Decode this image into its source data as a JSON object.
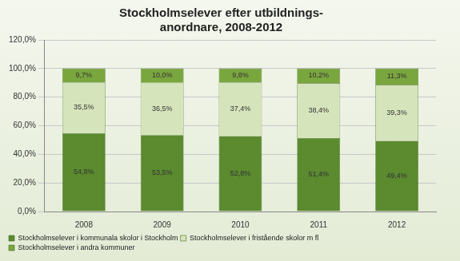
{
  "chart_data": {
    "type": "bar",
    "title": [
      "Stockholmselever efter utbildnings-",
      "anordnare, 2008-2012"
    ],
    "categories": [
      "2008",
      "2009",
      "2010",
      "2011",
      "2012"
    ],
    "stacked": true,
    "grid": true,
    "legend": "bottom",
    "data_labels": true,
    "ylim": [
      0,
      120
    ],
    "yticks": [
      {
        "value": 0,
        "label": "0,0%"
      },
      {
        "value": 20,
        "label": "20,0%"
      },
      {
        "value": 40,
        "label": "40,0%"
      },
      {
        "value": 60,
        "label": "60,0%"
      },
      {
        "value": 80,
        "label": "80,0%"
      },
      {
        "value": 100,
        "label": "100,0%"
      },
      {
        "value": 120,
        "label": "120,0%"
      }
    ],
    "series": [
      {
        "name": "Stockholmselever i kommunala skolor i Stockholm",
        "color": "#5b8a2f",
        "values": [
          54.8,
          53.5,
          52.8,
          51.4,
          49.4
        ],
        "value_labels": [
          "54,8%",
          "53,5%",
          "52,8%",
          "51,4%",
          "49,4%"
        ]
      },
      {
        "name": "Stockholmselever i fristående skolor m fl",
        "color": "#d6e4bc",
        "values": [
          35.5,
          36.5,
          37.4,
          38.4,
          39.3
        ],
        "value_labels": [
          "35,5%",
          "36,5%",
          "37,4%",
          "38,4%",
          "39,3%"
        ]
      },
      {
        "name": "Stockholmselever i andra kommuner",
        "color": "#7aa63e",
        "values": [
          9.7,
          10.0,
          9.8,
          10.2,
          11.3
        ],
        "value_labels": [
          "9,7%",
          "10,0%",
          "9,8%",
          "10,2%",
          "11,3%"
        ]
      }
    ]
  }
}
